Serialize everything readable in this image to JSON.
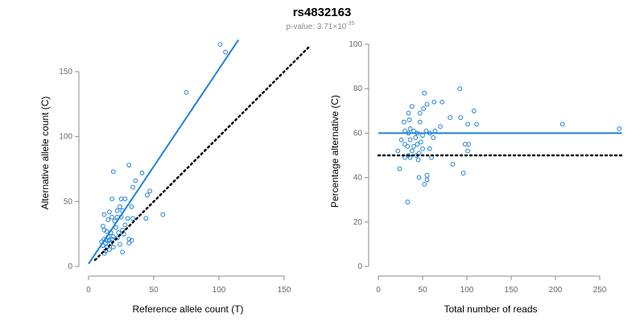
{
  "figure": {
    "title": "rs4832163",
    "subtitle_prefix": "p-value: 3.71×10",
    "subtitle_exponent": "-35"
  },
  "colors": {
    "points": "#1f82d8",
    "fit_line": "#1f82d8",
    "reference_line": "#000000",
    "axes": "#8c8c8c"
  },
  "chart_data": [
    {
      "type": "scatter",
      "xlabel": "Reference allele count (T)",
      "ylabel": "Alternative allele count (C)",
      "xlim": [
        0,
        150
      ],
      "ylim": [
        0,
        150
      ],
      "xticks": [
        0,
        50,
        100,
        150
      ],
      "yticks": [
        0,
        50,
        100,
        150
      ],
      "grid": false,
      "points": [
        [
          101,
          171
        ],
        [
          105,
          165
        ],
        [
          75,
          134
        ],
        [
          31,
          78
        ],
        [
          19,
          73
        ],
        [
          41,
          72
        ],
        [
          36,
          66
        ],
        [
          47,
          58
        ],
        [
          45,
          55
        ],
        [
          34,
          61
        ],
        [
          25,
          52
        ],
        [
          28,
          52
        ],
        [
          18,
          52
        ],
        [
          12,
          40
        ],
        [
          57,
          40
        ],
        [
          33,
          46
        ],
        [
          24,
          46
        ],
        [
          22,
          43
        ],
        [
          26,
          43
        ],
        [
          16,
          42
        ],
        [
          15,
          36
        ],
        [
          18,
          38
        ],
        [
          22,
          38
        ],
        [
          25,
          38
        ],
        [
          30,
          37
        ],
        [
          34,
          37
        ],
        [
          44,
          37
        ],
        [
          20,
          35
        ],
        [
          11,
          31
        ],
        [
          21,
          30
        ],
        [
          26,
          28
        ],
        [
          28,
          32
        ],
        [
          12,
          28
        ],
        [
          14,
          27
        ],
        [
          17,
          26
        ],
        [
          23,
          26
        ],
        [
          27,
          25
        ],
        [
          15,
          23
        ],
        [
          19,
          23
        ],
        [
          22,
          22
        ],
        [
          12,
          21
        ],
        [
          14,
          20
        ],
        [
          16,
          20
        ],
        [
          18,
          21
        ],
        [
          31,
          21
        ],
        [
          33,
          20
        ],
        [
          10,
          19
        ],
        [
          13,
          18
        ],
        [
          17,
          18
        ],
        [
          11,
          16
        ],
        [
          24,
          17
        ],
        [
          31,
          18
        ],
        [
          14,
          15
        ],
        [
          19,
          15
        ],
        [
          16,
          13
        ],
        [
          26,
          11
        ],
        [
          12,
          10
        ],
        [
          13,
          12
        ]
      ],
      "fit_line": {
        "slope": 1.5,
        "intercept": 2,
        "x_range": [
          0,
          115
        ]
      },
      "reference_line": {
        "slope": 1,
        "intercept": 0,
        "x_range": [
          5,
          170
        ]
      }
    },
    {
      "type": "scatter",
      "xlabel": "Total number of reads",
      "ylabel": "Percentage alternative (C)",
      "xlim": [
        0,
        250
      ],
      "ylim": [
        0,
        100
      ],
      "xticks": [
        0,
        50,
        100,
        150,
        200,
        250
      ],
      "yticks": [
        0,
        20,
        40,
        60,
        80,
        100
      ],
      "grid": false,
      "points": [
        [
          92,
          80
        ],
        [
          52,
          78
        ],
        [
          38,
          72
        ],
        [
          63,
          74
        ],
        [
          72,
          74
        ],
        [
          55,
          73
        ],
        [
          34,
          69
        ],
        [
          51,
          71
        ],
        [
          108,
          70
        ],
        [
          47,
          69
        ],
        [
          81,
          67
        ],
        [
          93,
          67
        ],
        [
          35,
          66
        ],
        [
          29,
          65
        ],
        [
          47,
          65
        ],
        [
          111,
          64
        ],
        [
          208,
          64
        ],
        [
          272,
          62
        ],
        [
          101,
          64
        ],
        [
          70,
          63
        ],
        [
          36,
          62
        ],
        [
          30,
          61
        ],
        [
          40,
          61
        ],
        [
          54,
          61
        ],
        [
          64,
          61
        ],
        [
          34,
          60
        ],
        [
          44,
          60
        ],
        [
          58,
          60
        ],
        [
          50,
          59
        ],
        [
          42,
          58
        ],
        [
          62,
          58
        ],
        [
          26,
          57
        ],
        [
          36,
          57
        ],
        [
          48,
          56
        ],
        [
          30,
          55
        ],
        [
          44,
          55
        ],
        [
          98,
          55
        ],
        [
          102,
          55
        ],
        [
          33,
          54
        ],
        [
          40,
          54
        ],
        [
          50,
          53
        ],
        [
          58,
          53
        ],
        [
          22,
          52
        ],
        [
          38,
          52
        ],
        [
          46,
          51
        ],
        [
          101,
          52
        ],
        [
          34,
          50
        ],
        [
          43,
          50
        ],
        [
          30,
          49
        ],
        [
          36,
          49
        ],
        [
          60,
          49
        ],
        [
          45,
          48
        ],
        [
          84,
          46
        ],
        [
          24,
          44
        ],
        [
          96,
          42
        ],
        [
          55,
          41
        ],
        [
          46,
          40
        ],
        [
          55,
          39
        ],
        [
          52,
          37
        ],
        [
          33,
          29
        ]
      ],
      "fit_line": {
        "y": 60,
        "x_range": [
          0,
          275
        ]
      },
      "reference_line": {
        "y": 50,
        "x_range": [
          0,
          275
        ]
      }
    }
  ]
}
